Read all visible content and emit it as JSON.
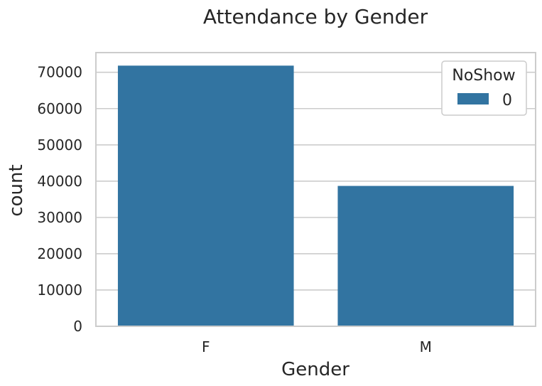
{
  "chart_data": {
    "type": "bar",
    "title": "Attendance by Gender",
    "xlabel": "Gender",
    "ylabel": "count",
    "categories": [
      "F",
      "M"
    ],
    "series": [
      {
        "name": "0",
        "values": [
          71840,
          38687
        ],
        "color": "#3274a1"
      }
    ],
    "ylim": [
      0,
      75430
    ],
    "yticks": [
      0,
      10000,
      20000,
      30000,
      40000,
      50000,
      60000,
      70000
    ],
    "grid": true,
    "legend": {
      "title": "NoShow",
      "placement": "top-right"
    }
  }
}
